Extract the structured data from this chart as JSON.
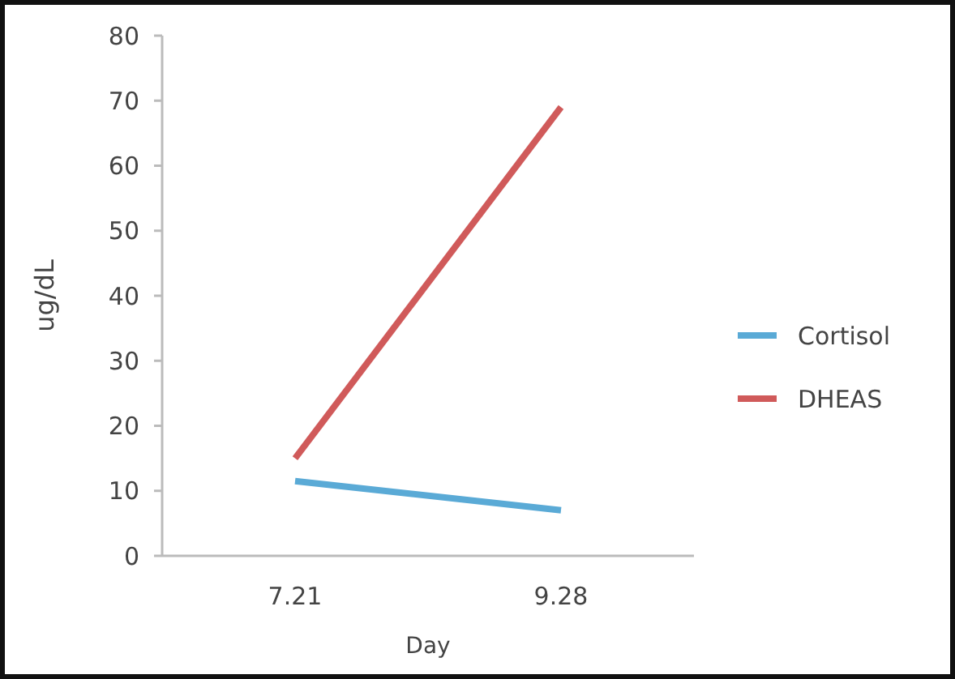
{
  "chart_data": {
    "type": "line",
    "xlabel": "Day",
    "ylabel": "ug/dL",
    "categories": [
      "7.21",
      "9.28"
    ],
    "series": [
      {
        "name": "Cortisol",
        "color": "#5aaad6",
        "values": [
          11.5,
          7
        ]
      },
      {
        "name": "DHEAS",
        "color": "#d05a5a",
        "values": [
          15,
          69
        ]
      }
    ],
    "ylim": [
      0,
      80
    ],
    "yticks": [
      0,
      10,
      20,
      30,
      40,
      50,
      60,
      70,
      80
    ],
    "grid": false,
    "legend": "right",
    "marker": "none",
    "line_style": "solid"
  }
}
